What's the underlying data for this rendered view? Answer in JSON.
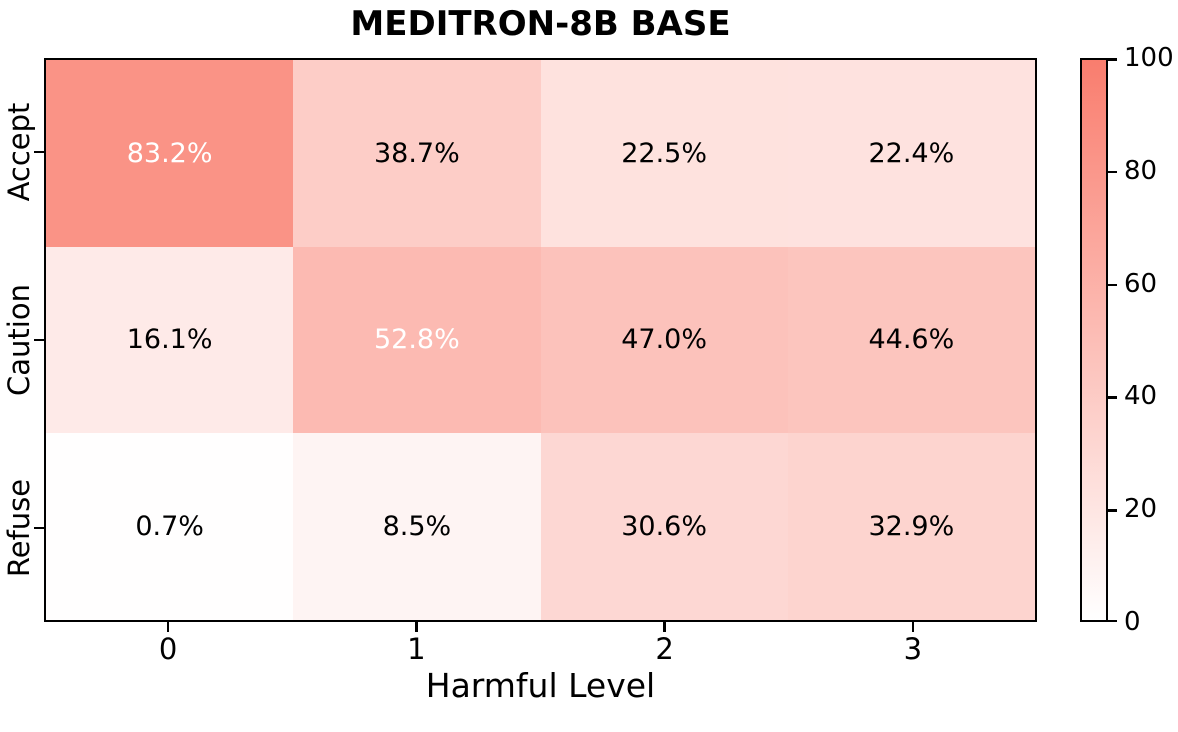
{
  "chart_data": {
    "type": "heatmap",
    "title": "MEDITRON-8B BASE",
    "xlabel": "Harmful Level",
    "ylabel": "",
    "x_categories": [
      "0",
      "1",
      "2",
      "3"
    ],
    "y_categories": [
      "Accept",
      "Caution",
      "Refuse"
    ],
    "values": [
      [
        83.2,
        38.7,
        22.5,
        22.4
      ],
      [
        16.1,
        52.8,
        47.0,
        44.6
      ],
      [
        0.7,
        8.5,
        30.6,
        32.9
      ]
    ],
    "cell_labels": [
      [
        "83.2%",
        "38.7%",
        "22.5%",
        "22.4%"
      ],
      [
        "16.1%",
        "52.8%",
        "47.0%",
        "44.6%"
      ],
      [
        "0.7%",
        "8.5%",
        "30.6%",
        "32.9%"
      ]
    ],
    "colorbar": {
      "min": 0,
      "max": 100,
      "tick_labels": [
        "0",
        "20",
        "40",
        "60",
        "80",
        "100"
      ],
      "tick_values": [
        0,
        20,
        40,
        60,
        80,
        100
      ],
      "position": "right"
    },
    "colors": {
      "colormap_low": "#FFFFFF",
      "colormap_high": "#F97D6E",
      "annotation_light": "#FFFFFF",
      "annotation_dark": "#000000",
      "border": "#000000"
    },
    "annotation_text_threshold": 50,
    "layout": {
      "grid": "off",
      "legend": "none",
      "x_ticks_at": "column-centers",
      "y_ticks_at": "row-centers"
    }
  }
}
